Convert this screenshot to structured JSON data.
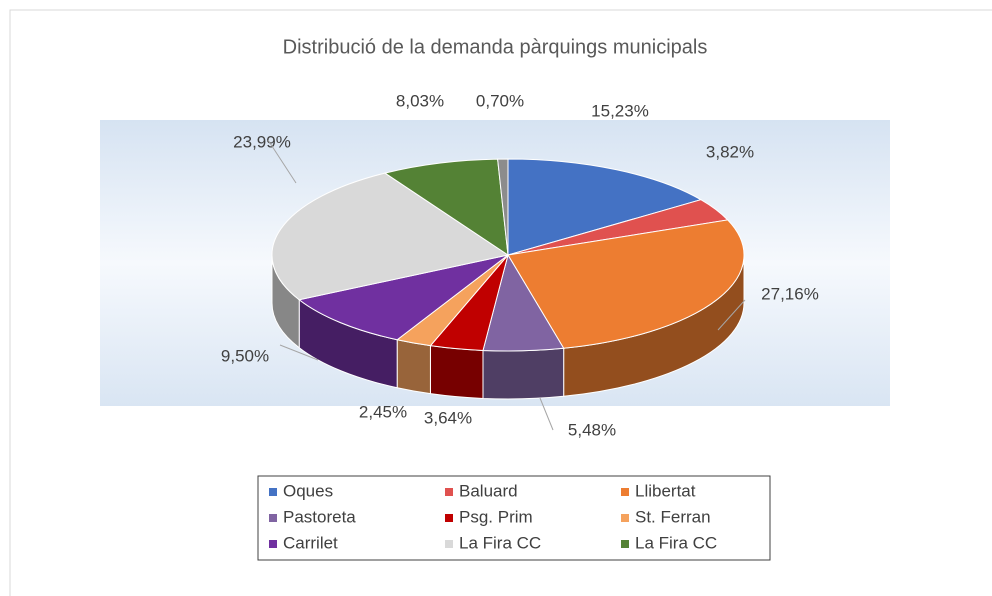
{
  "chart_data": {
    "type": "pie",
    "title": "Distribució de la demanda pàrquings municipals",
    "categories": [
      "Oques",
      "Baluard",
      "Llibertat",
      "Pastoreta",
      "Psg. Prim",
      "St. Ferran",
      "Carrilet",
      "La Fira CC",
      "La Fira CC",
      null
    ],
    "values": [
      15.23,
      3.82,
      27.16,
      5.48,
      3.64,
      2.45,
      9.5,
      23.99,
      8.03,
      0.7
    ],
    "value_labels": [
      "15,23%",
      "3,82%",
      "27,16%",
      "5,48%",
      "3,64%",
      "2,45%",
      "9,50%",
      "23,99%",
      "8,03%",
      "0,70%"
    ],
    "colors": [
      "#4472c4",
      "#e0514f",
      "#ed7d31",
      "#8064a2",
      "#c00000",
      "#f5a25d",
      "#7030a0",
      "#d9d9d9",
      "#548235",
      "#8c8c8c"
    ],
    "legend": "bottom"
  }
}
